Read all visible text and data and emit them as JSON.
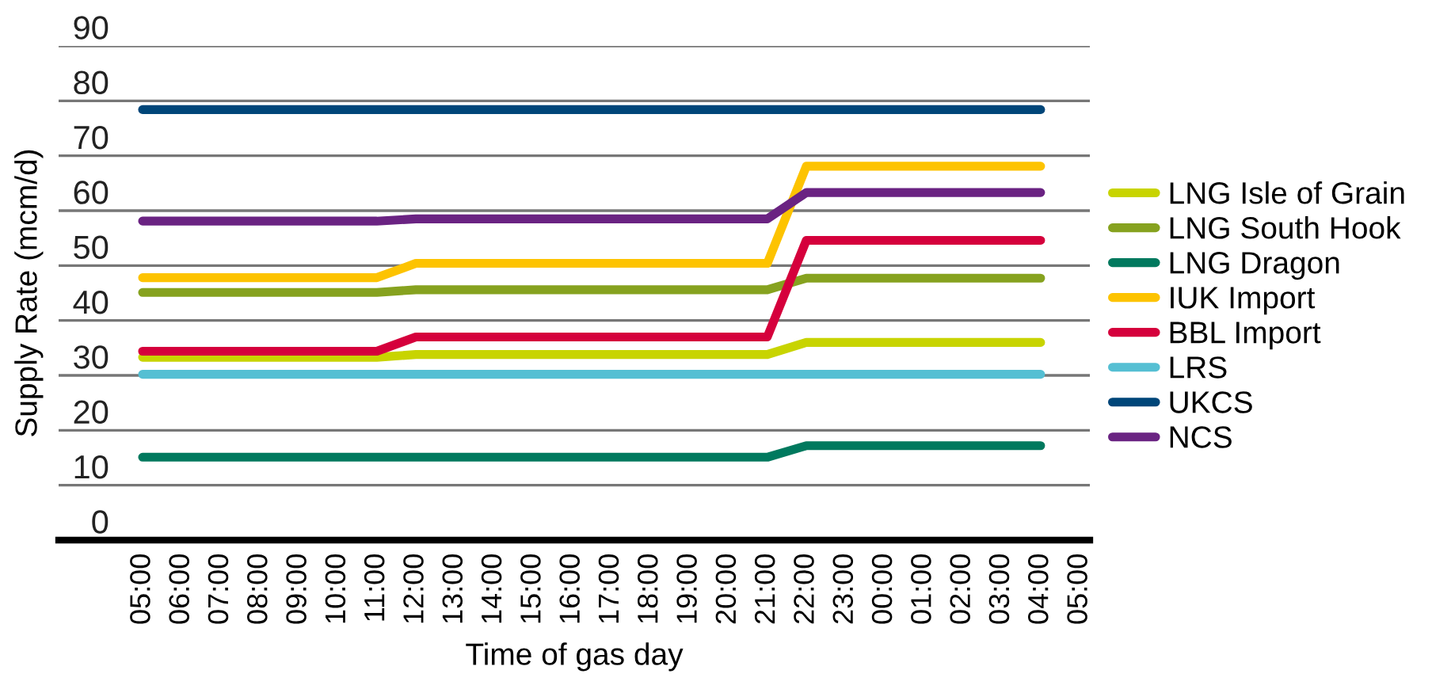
{
  "chart_data": {
    "type": "line",
    "xlabel": "Time of gas day",
    "ylabel": "Supply Rate (mcm/d)",
    "categories": [
      "05:00",
      "06:00",
      "07:00",
      "08:00",
      "09:00",
      "10:00",
      "11:00",
      "12:00",
      "13:00",
      "14:00",
      "15:00",
      "16:00",
      "17:00",
      "18:00",
      "19:00",
      "20:00",
      "21:00",
      "22:00",
      "23:00",
      "00:00",
      "01:00",
      "02:00",
      "03:00",
      "04:00",
      "05:00"
    ],
    "ylim": [
      0,
      90
    ],
    "yticks": [
      0,
      10,
      20,
      30,
      40,
      50,
      60,
      70,
      80,
      90
    ],
    "grid": "y",
    "legend": "right",
    "marker": "none",
    "line_style": "solid",
    "series": [
      {
        "name": "LNG Isle of Grain",
        "color": "#c8d400",
        "values": [
          33.3,
          33.3,
          33.3,
          33.3,
          33.3,
          33.3,
          33.3,
          33.8,
          33.8,
          33.8,
          33.8,
          33.8,
          33.8,
          33.8,
          33.8,
          33.8,
          33.8,
          36.0,
          36.0,
          36.0,
          36.0,
          36.0,
          36.0,
          36.0,
          null
        ]
      },
      {
        "name": "LNG South Hook",
        "color": "#86a21f",
        "values": [
          45.1,
          45.1,
          45.1,
          45.1,
          45.1,
          45.1,
          45.1,
          45.6,
          45.6,
          45.6,
          45.6,
          45.6,
          45.6,
          45.6,
          45.6,
          45.6,
          45.6,
          47.7,
          47.7,
          47.7,
          47.7,
          47.7,
          47.7,
          47.7,
          null
        ]
      },
      {
        "name": "LNG Dragon",
        "color": "#00795e",
        "values": [
          15.1,
          15.1,
          15.1,
          15.1,
          15.1,
          15.1,
          15.1,
          15.1,
          15.1,
          15.1,
          15.1,
          15.1,
          15.1,
          15.1,
          15.1,
          15.1,
          15.1,
          17.2,
          17.2,
          17.2,
          17.2,
          17.2,
          17.2,
          17.2,
          null
        ]
      },
      {
        "name": "IUK Import",
        "color": "#fdc300",
        "values": [
          47.8,
          47.8,
          47.8,
          47.8,
          47.8,
          47.8,
          47.8,
          50.4,
          50.4,
          50.4,
          50.4,
          50.4,
          50.4,
          50.4,
          50.4,
          50.4,
          50.4,
          68.1,
          68.1,
          68.1,
          68.1,
          68.1,
          68.1,
          68.1,
          null
        ]
      },
      {
        "name": "BBL Import",
        "color": "#d5003c",
        "values": [
          34.4,
          34.4,
          34.4,
          34.4,
          34.4,
          34.4,
          34.4,
          37.0,
          37.0,
          37.0,
          37.0,
          37.0,
          37.0,
          37.0,
          37.0,
          37.0,
          37.0,
          54.6,
          54.6,
          54.6,
          54.6,
          54.6,
          54.6,
          54.6,
          null
        ]
      },
      {
        "name": "LRS",
        "color": "#55bfd3",
        "values": [
          30.2,
          30.2,
          30.2,
          30.2,
          30.2,
          30.2,
          30.2,
          30.2,
          30.2,
          30.2,
          30.2,
          30.2,
          30.2,
          30.2,
          30.2,
          30.2,
          30.2,
          30.2,
          30.2,
          30.2,
          30.2,
          30.2,
          30.2,
          30.2,
          null
        ]
      },
      {
        "name": "UKCS",
        "color": "#004679",
        "values": [
          78.4,
          78.4,
          78.4,
          78.4,
          78.4,
          78.4,
          78.4,
          78.4,
          78.4,
          78.4,
          78.4,
          78.4,
          78.4,
          78.4,
          78.4,
          78.4,
          78.4,
          78.4,
          78.4,
          78.4,
          78.4,
          78.4,
          78.4,
          78.4,
          null
        ]
      },
      {
        "name": "NCS",
        "color": "#6a2382",
        "values": [
          58.1,
          58.1,
          58.1,
          58.1,
          58.1,
          58.1,
          58.1,
          58.5,
          58.5,
          58.5,
          58.5,
          58.5,
          58.5,
          58.5,
          58.5,
          58.5,
          58.5,
          63.3,
          63.3,
          63.3,
          63.3,
          63.3,
          63.3,
          63.3,
          null
        ]
      }
    ]
  }
}
